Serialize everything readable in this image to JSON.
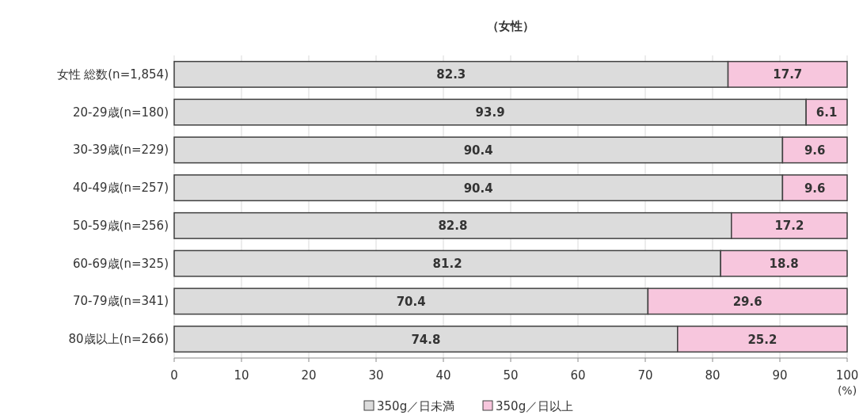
{
  "chart_data": {
    "type": "bar",
    "title": "（女性）",
    "orientation": "horizontal",
    "stacked": true,
    "categories": [
      "女性 総数(n=1,854)",
      "20-29歳(n=180)",
      "30-39歳(n=229)",
      "40-49歳(n=257)",
      "50-59歳(n=256)",
      "60-69歳(n=325)",
      "70-79歳(n=341)",
      "80歳以上(n=266)"
    ],
    "series": [
      {
        "name": "350g／日未満",
        "color": "#dcdcdc",
        "values": [
          82.3,
          93.9,
          90.4,
          90.4,
          82.8,
          81.2,
          70.4,
          74.8
        ]
      },
      {
        "name": "350g／日以上",
        "color": "#f7c6dd",
        "values": [
          17.7,
          6.1,
          9.6,
          9.6,
          17.2,
          18.8,
          29.6,
          25.2
        ]
      }
    ],
    "xlim": [
      0,
      100
    ],
    "xticks": [
      0,
      10,
      20,
      30,
      40,
      50,
      60,
      70,
      80,
      90,
      100
    ],
    "xlabel": "(%)",
    "grid": "x",
    "legend": "bottom",
    "data_labels": true
  }
}
